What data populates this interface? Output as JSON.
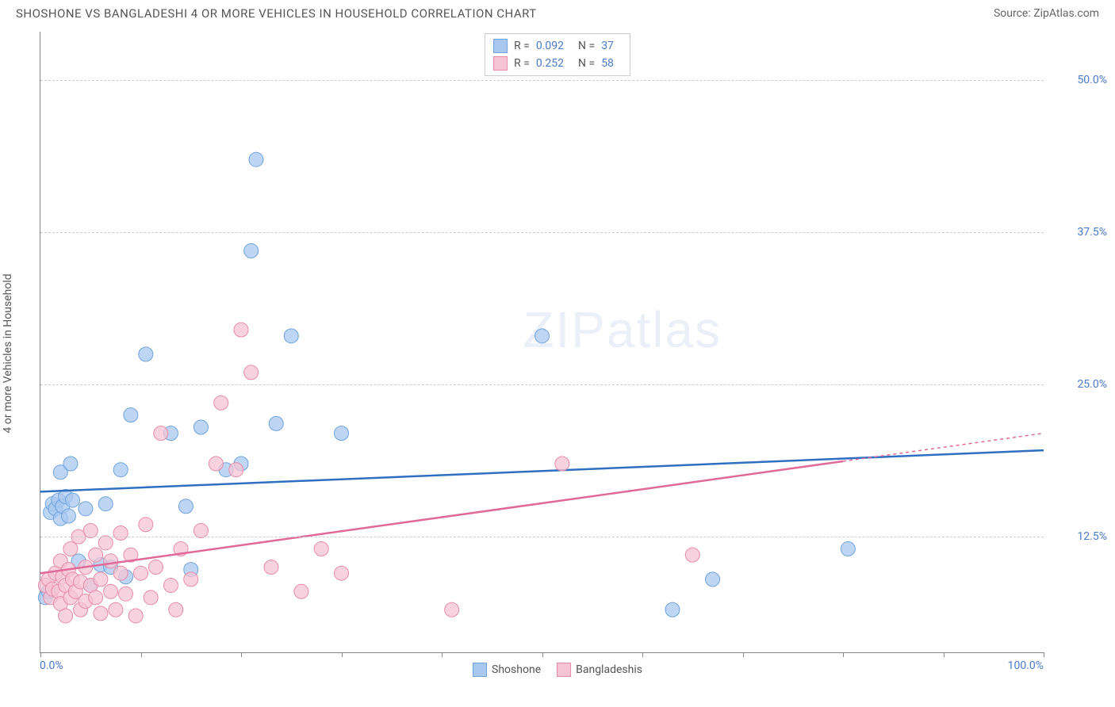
{
  "header": {
    "title": "SHOSHONE VS BANGLADESHI 4 OR MORE VEHICLES IN HOUSEHOLD CORRELATION CHART",
    "source_prefix": "Source: ",
    "source_name": "ZipAtlas.com"
  },
  "axes": {
    "y_title": "4 or more Vehicles in Household",
    "x_min_label": "0.0%",
    "x_max_label": "100.0%",
    "x_min": 0,
    "x_max": 100,
    "y_ticks": [
      {
        "value": 12.5,
        "label": "12.5%"
      },
      {
        "value": 25.0,
        "label": "25.0%"
      },
      {
        "value": 37.5,
        "label": "37.5%"
      },
      {
        "value": 50.0,
        "label": "50.0%"
      }
    ],
    "x_tick_positions": [
      0,
      10,
      20,
      30,
      40,
      50,
      60,
      70,
      80,
      90,
      100
    ],
    "y_min": 3,
    "y_max": 54
  },
  "watermark": {
    "zip": "ZIP",
    "atlas": "atlas"
  },
  "series": [
    {
      "name": "Shoshone",
      "fill": "#a8c8ef",
      "stroke": "#6ea3de",
      "line_color": "#2e6fc1",
      "r_value": "0.092",
      "n_value": "37",
      "marker_radius": 9,
      "trend": {
        "x1": 0,
        "y1": 16.2,
        "x2": 100,
        "y2": 19.6,
        "dash_from_x": null
      },
      "points": [
        [
          0.5,
          7.5
        ],
        [
          0.8,
          8.0
        ],
        [
          1.0,
          14.5
        ],
        [
          1.2,
          15.2
        ],
        [
          1.5,
          14.8
        ],
        [
          1.8,
          15.5
        ],
        [
          2.0,
          17.8
        ],
        [
          2.0,
          14.0
        ],
        [
          2.2,
          15.0
        ],
        [
          2.5,
          15.8
        ],
        [
          2.8,
          14.2
        ],
        [
          3.0,
          18.5
        ],
        [
          3.2,
          15.5
        ],
        [
          3.8,
          10.5
        ],
        [
          4.5,
          14.8
        ],
        [
          5.0,
          8.5
        ],
        [
          6.0,
          10.2
        ],
        [
          6.5,
          15.2
        ],
        [
          7.0,
          10.0
        ],
        [
          8.0,
          18.0
        ],
        [
          8.5,
          9.2
        ],
        [
          9.0,
          22.5
        ],
        [
          10.5,
          27.5
        ],
        [
          13.0,
          21.0
        ],
        [
          14.5,
          15.0
        ],
        [
          15.0,
          9.8
        ],
        [
          16.0,
          21.5
        ],
        [
          18.5,
          18.0
        ],
        [
          20.0,
          18.5
        ],
        [
          21.0,
          36.0
        ],
        [
          21.5,
          43.5
        ],
        [
          23.5,
          21.8
        ],
        [
          25.0,
          29.0
        ],
        [
          30.0,
          21.0
        ],
        [
          50.0,
          29.0
        ],
        [
          63.0,
          6.5
        ],
        [
          67.0,
          9.0
        ],
        [
          80.5,
          11.5
        ]
      ]
    },
    {
      "name": "Bangladeshis",
      "fill": "#f5c4d4",
      "stroke": "#e88ba8",
      "line_color": "#e06998",
      "r_value": "0.252",
      "n_value": "58",
      "marker_radius": 9,
      "trend": {
        "x1": 0,
        "y1": 9.5,
        "x2": 100,
        "y2": 21.0,
        "dash_from_x": 80
      },
      "points": [
        [
          0.5,
          8.5
        ],
        [
          0.8,
          9.0
        ],
        [
          1.0,
          7.5
        ],
        [
          1.2,
          8.2
        ],
        [
          1.5,
          9.5
        ],
        [
          1.8,
          8.0
        ],
        [
          2.0,
          10.5
        ],
        [
          2.0,
          7.0
        ],
        [
          2.2,
          9.2
        ],
        [
          2.5,
          8.5
        ],
        [
          2.5,
          6.0
        ],
        [
          2.8,
          9.8
        ],
        [
          3.0,
          11.5
        ],
        [
          3.0,
          7.5
        ],
        [
          3.2,
          9.0
        ],
        [
          3.5,
          8.0
        ],
        [
          3.8,
          12.5
        ],
        [
          4.0,
          8.8
        ],
        [
          4.0,
          6.5
        ],
        [
          4.5,
          10.0
        ],
        [
          4.5,
          7.2
        ],
        [
          5.0,
          13.0
        ],
        [
          5.0,
          8.5
        ],
        [
          5.5,
          7.5
        ],
        [
          5.5,
          11.0
        ],
        [
          6.0,
          9.0
        ],
        [
          6.0,
          6.2
        ],
        [
          6.5,
          12.0
        ],
        [
          7.0,
          8.0
        ],
        [
          7.0,
          10.5
        ],
        [
          7.5,
          6.5
        ],
        [
          8.0,
          9.5
        ],
        [
          8.0,
          12.8
        ],
        [
          8.5,
          7.8
        ],
        [
          9.0,
          11.0
        ],
        [
          9.5,
          6.0
        ],
        [
          10.0,
          9.5
        ],
        [
          10.5,
          13.5
        ],
        [
          11.0,
          7.5
        ],
        [
          11.5,
          10.0
        ],
        [
          12.0,
          21.0
        ],
        [
          13.0,
          8.5
        ],
        [
          13.5,
          6.5
        ],
        [
          14.0,
          11.5
        ],
        [
          15.0,
          9.0
        ],
        [
          16.0,
          13.0
        ],
        [
          17.5,
          18.5
        ],
        [
          18.0,
          23.5
        ],
        [
          19.5,
          18.0
        ],
        [
          20.0,
          29.5
        ],
        [
          21.0,
          26.0
        ],
        [
          23.0,
          10.0
        ],
        [
          26.0,
          8.0
        ],
        [
          28.0,
          11.5
        ],
        [
          30.0,
          9.5
        ],
        [
          41.0,
          6.5
        ],
        [
          52.0,
          18.5
        ],
        [
          65.0,
          11.0
        ]
      ]
    }
  ],
  "legend_labels": {
    "r": "R =",
    "n": "N ="
  },
  "colors": {
    "grid": "#cccccc",
    "axis": "#888888",
    "text": "#555555",
    "value": "#4a7bc8",
    "background": "#ffffff"
  }
}
